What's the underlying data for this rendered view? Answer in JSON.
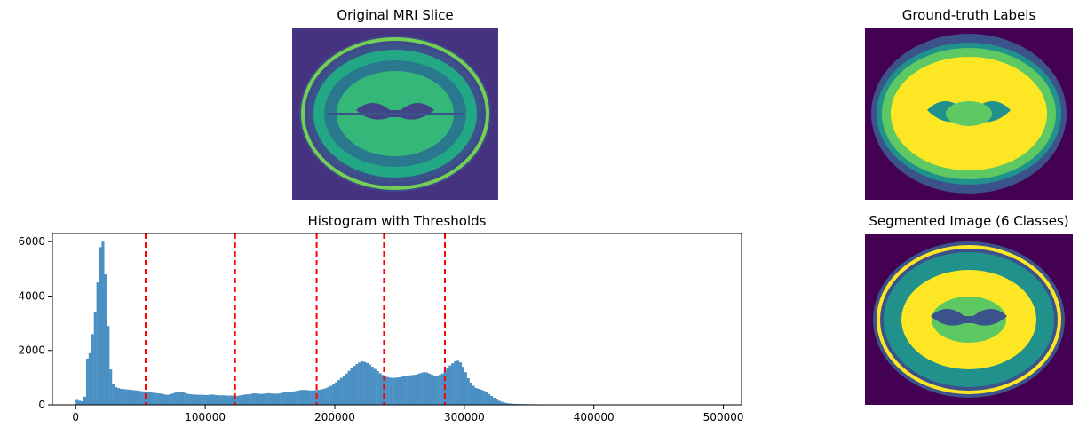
{
  "panels": {
    "mri_title": "Original MRI Slice",
    "gt_title": "Ground-truth Labels",
    "hist_title": "Histogram with Thresholds",
    "seg_title": "Segmented Image (6 Classes)"
  },
  "colors": {
    "viridis_dark": "#440154",
    "viridis_blue": "#3b528b",
    "viridis_teal": "#21918c",
    "viridis_green": "#5ec962",
    "viridis_yellow": "#fde725",
    "bar": "#4a90c2",
    "threshold": "#ff0000"
  },
  "chart_data": {
    "type": "bar",
    "x_ticks": [
      0,
      100000,
      200000,
      300000,
      400000,
      500000
    ],
    "y_ticks": [
      0,
      2000,
      4000,
      6000
    ],
    "xlim": [
      -18000,
      514000
    ],
    "ylim": [
      0,
      6300
    ],
    "bin_width": 2000,
    "thresholds": [
      54000,
      123000,
      186000,
      238000,
      285000
    ],
    "bins": [
      [
        0,
        180
      ],
      [
        2000,
        150
      ],
      [
        4000,
        130
      ],
      [
        6000,
        300
      ],
      [
        8000,
        1700
      ],
      [
        10000,
        1900
      ],
      [
        12000,
        2600
      ],
      [
        14000,
        3400
      ],
      [
        16000,
        4500
      ],
      [
        18000,
        5800
      ],
      [
        20000,
        6000
      ],
      [
        22000,
        4800
      ],
      [
        24000,
        2900
      ],
      [
        26000,
        1300
      ],
      [
        28000,
        750
      ],
      [
        30000,
        650
      ],
      [
        32000,
        620
      ],
      [
        34000,
        590
      ],
      [
        36000,
        580
      ],
      [
        38000,
        570
      ],
      [
        40000,
        560
      ],
      [
        42000,
        550
      ],
      [
        44000,
        540
      ],
      [
        46000,
        530
      ],
      [
        48000,
        520
      ],
      [
        50000,
        500
      ],
      [
        52000,
        490
      ],
      [
        54000,
        480
      ],
      [
        56000,
        460
      ],
      [
        58000,
        450
      ],
      [
        60000,
        440
      ],
      [
        62000,
        430
      ],
      [
        64000,
        420
      ],
      [
        66000,
        400
      ],
      [
        68000,
        380
      ],
      [
        70000,
        370
      ],
      [
        72000,
        390
      ],
      [
        74000,
        420
      ],
      [
        76000,
        450
      ],
      [
        78000,
        480
      ],
      [
        80000,
        490
      ],
      [
        82000,
        470
      ],
      [
        84000,
        430
      ],
      [
        86000,
        400
      ],
      [
        88000,
        390
      ],
      [
        90000,
        380
      ],
      [
        92000,
        380
      ],
      [
        94000,
        370
      ],
      [
        96000,
        370
      ],
      [
        98000,
        370
      ],
      [
        100000,
        360
      ],
      [
        102000,
        370
      ],
      [
        104000,
        380
      ],
      [
        106000,
        370
      ],
      [
        108000,
        360
      ],
      [
        110000,
        350
      ],
      [
        112000,
        350
      ],
      [
        114000,
        350
      ],
      [
        116000,
        340
      ],
      [
        118000,
        340
      ],
      [
        120000,
        340
      ],
      [
        122000,
        330
      ],
      [
        124000,
        330
      ],
      [
        126000,
        350
      ],
      [
        128000,
        370
      ],
      [
        130000,
        380
      ],
      [
        132000,
        390
      ],
      [
        134000,
        400
      ],
      [
        136000,
        420
      ],
      [
        138000,
        420
      ],
      [
        140000,
        410
      ],
      [
        142000,
        400
      ],
      [
        144000,
        410
      ],
      [
        146000,
        420
      ],
      [
        148000,
        430
      ],
      [
        150000,
        420
      ],
      [
        152000,
        410
      ],
      [
        154000,
        410
      ],
      [
        156000,
        420
      ],
      [
        158000,
        440
      ],
      [
        160000,
        460
      ],
      [
        162000,
        470
      ],
      [
        164000,
        480
      ],
      [
        166000,
        490
      ],
      [
        168000,
        500
      ],
      [
        170000,
        520
      ],
      [
        172000,
        540
      ],
      [
        174000,
        550
      ],
      [
        176000,
        550
      ],
      [
        178000,
        540
      ],
      [
        180000,
        530
      ],
      [
        182000,
        530
      ],
      [
        184000,
        540
      ],
      [
        186000,
        550
      ],
      [
        188000,
        560
      ],
      [
        190000,
        580
      ],
      [
        192000,
        610
      ],
      [
        194000,
        650
      ],
      [
        196000,
        700
      ],
      [
        198000,
        760
      ],
      [
        200000,
        830
      ],
      [
        202000,
        910
      ],
      [
        204000,
        990
      ],
      [
        206000,
        1070
      ],
      [
        208000,
        1150
      ],
      [
        210000,
        1250
      ],
      [
        212000,
        1350
      ],
      [
        214000,
        1430
      ],
      [
        216000,
        1500
      ],
      [
        218000,
        1560
      ],
      [
        220000,
        1600
      ],
      [
        222000,
        1580
      ],
      [
        224000,
        1540
      ],
      [
        226000,
        1480
      ],
      [
        228000,
        1400
      ],
      [
        230000,
        1320
      ],
      [
        232000,
        1240
      ],
      [
        234000,
        1160
      ],
      [
        236000,
        1100
      ],
      [
        238000,
        1050
      ],
      [
        240000,
        1020
      ],
      [
        242000,
        1000
      ],
      [
        244000,
        990
      ],
      [
        246000,
        1000
      ],
      [
        248000,
        1010
      ],
      [
        250000,
        1020
      ],
      [
        252000,
        1050
      ],
      [
        254000,
        1070
      ],
      [
        256000,
        1080
      ],
      [
        258000,
        1090
      ],
      [
        260000,
        1100
      ],
      [
        262000,
        1110
      ],
      [
        264000,
        1150
      ],
      [
        266000,
        1180
      ],
      [
        268000,
        1200
      ],
      [
        270000,
        1190
      ],
      [
        272000,
        1150
      ],
      [
        274000,
        1110
      ],
      [
        276000,
        1080
      ],
      [
        278000,
        1070
      ],
      [
        280000,
        1100
      ],
      [
        282000,
        1150
      ],
      [
        284000,
        1250
      ],
      [
        286000,
        1350
      ],
      [
        288000,
        1450
      ],
      [
        290000,
        1530
      ],
      [
        292000,
        1600
      ],
      [
        294000,
        1620
      ],
      [
        296000,
        1560
      ],
      [
        298000,
        1400
      ],
      [
        300000,
        1200
      ],
      [
        302000,
        980
      ],
      [
        304000,
        820
      ],
      [
        306000,
        700
      ],
      [
        308000,
        620
      ],
      [
        310000,
        590
      ],
      [
        312000,
        560
      ],
      [
        314000,
        520
      ],
      [
        316000,
        460
      ],
      [
        318000,
        400
      ],
      [
        320000,
        330
      ],
      [
        322000,
        260
      ],
      [
        324000,
        200
      ],
      [
        326000,
        150
      ],
      [
        328000,
        110
      ],
      [
        330000,
        80
      ],
      [
        332000,
        60
      ],
      [
        334000,
        50
      ],
      [
        336000,
        40
      ],
      [
        338000,
        36
      ],
      [
        340000,
        32
      ],
      [
        342000,
        30
      ],
      [
        344000,
        28
      ],
      [
        346000,
        26
      ],
      [
        348000,
        24
      ],
      [
        350000,
        22
      ],
      [
        352000,
        20
      ],
      [
        354000,
        20
      ],
      [
        356000,
        18
      ],
      [
        358000,
        18
      ],
      [
        360000,
        16
      ],
      [
        362000,
        16
      ],
      [
        364000,
        15
      ],
      [
        366000,
        14
      ],
      [
        368000,
        14
      ],
      [
        370000,
        13
      ],
      [
        372000,
        12
      ],
      [
        374000,
        12
      ],
      [
        376000,
        11
      ],
      [
        378000,
        10
      ],
      [
        380000,
        10
      ],
      [
        382000,
        9
      ],
      [
        384000,
        9
      ],
      [
        386000,
        8
      ],
      [
        388000,
        8
      ],
      [
        390000,
        7
      ],
      [
        392000,
        7
      ],
      [
        394000,
        6
      ],
      [
        396000,
        6
      ],
      [
        398000,
        6
      ],
      [
        400000,
        5
      ],
      [
        402000,
        5
      ],
      [
        404000,
        5
      ],
      [
        406000,
        4
      ],
      [
        408000,
        4
      ],
      [
        410000,
        4
      ],
      [
        412000,
        4
      ],
      [
        414000,
        3
      ],
      [
        416000,
        3
      ],
      [
        418000,
        3
      ],
      [
        420000,
        3
      ],
      [
        422000,
        3
      ],
      [
        424000,
        2
      ],
      [
        426000,
        2
      ],
      [
        428000,
        2
      ],
      [
        430000,
        2
      ],
      [
        432000,
        2
      ],
      [
        434000,
        1
      ],
      [
        436000,
        1
      ]
    ]
  }
}
